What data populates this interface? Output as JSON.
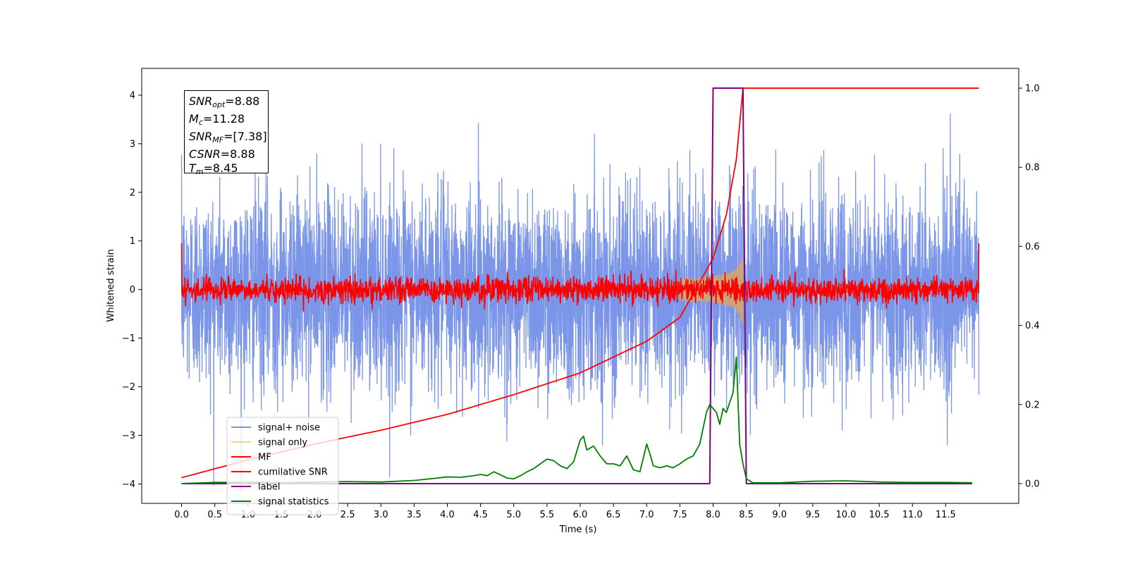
{
  "chart_data": {
    "type": "line",
    "title": "",
    "xlabel": "Time (s)",
    "ylabel": "Whitened strain",
    "xlim": [
      -0.6,
      12.6
    ],
    "ylim": [
      -4.4,
      4.55
    ],
    "y2lim": [
      -0.05,
      1.05
    ],
    "xticks": [
      "0.0",
      "0.5",
      "1.0",
      "1.5",
      "2.0",
      "2.5",
      "3.0",
      "3.5",
      "4.0",
      "4.5",
      "5.0",
      "5.5",
      "6.0",
      "6.5",
      "7.0",
      "7.5",
      "8.0",
      "8.5",
      "9.0",
      "9.5",
      "10.0",
      "10.5",
      "11.0",
      "11.5"
    ],
    "yticks": [
      "−4",
      "−3",
      "−2",
      "−1",
      "0",
      "1",
      "2",
      "3",
      "4"
    ],
    "y2ticks": [
      "0.0",
      "0.2",
      "0.4",
      "0.6",
      "0.8",
      "1.0"
    ],
    "legend_position": "lower left",
    "legend": [
      {
        "label": "signal+ noise",
        "color": "#7b96e8"
      },
      {
        "label": "signal only",
        "color": "#f5cf84"
      },
      {
        "label": "MF",
        "color": "#ff0000"
      },
      {
        "label": "cumilative SNR",
        "color": "#ff0000"
      },
      {
        "label": "label",
        "color": "#800080"
      },
      {
        "label": "signal statistics",
        "color": "#008000"
      }
    ],
    "annotation": {
      "snr_opt": {
        "name": "SNR",
        "sub": "opt",
        "value": "=8.88"
      },
      "mc": {
        "name": "M",
        "sub": "c",
        "value": "=11.28"
      },
      "snr_mf": {
        "name": "SNR",
        "sub": "MF",
        "value": "=[7.38]"
      },
      "csnr": {
        "name": "CSNR",
        "sub": "",
        "value": "=8.88"
      },
      "tm": {
        "name": "T",
        "sub": "m",
        "value": "=8.45"
      }
    },
    "series": [
      {
        "name": "signal+ noise",
        "axis": "left",
        "description_stats": {
          "x_start": 0.0,
          "x_end": 12.0,
          "mean": 0.0,
          "std": 1.0
        }
      },
      {
        "name": "signal only",
        "axis": "left",
        "chirp_start": 7.5,
        "chirp_end": 8.45,
        "peak_amplitude": 0.75
      },
      {
        "name": "MF",
        "axis": "left",
        "x_start": 0.0,
        "x_end": 12.0,
        "mean": 0.0,
        "std": 0.13,
        "edge_value": 0.95
      },
      {
        "name": "cumilative SNR",
        "axis": "right",
        "x": [
          0.0,
          1.0,
          2.0,
          3.0,
          4.0,
          5.0,
          6.0,
          7.0,
          7.5,
          8.0,
          8.2,
          8.35,
          8.45,
          12.0
        ],
        "values": [
          0.015,
          0.06,
          0.1,
          0.135,
          0.175,
          0.225,
          0.28,
          0.36,
          0.42,
          0.57,
          0.68,
          0.82,
          1.0,
          1.0
        ]
      },
      {
        "name": "label",
        "axis": "right",
        "x": [
          0.0,
          7.95,
          8.0,
          8.45,
          8.5,
          11.9
        ],
        "values": [
          0.0,
          0.0,
          1.0,
          1.0,
          0.0,
          0.0
        ]
      },
      {
        "name": "signal statistics",
        "axis": "right",
        "x": [
          0.0,
          0.5,
          1.0,
          1.5,
          2.0,
          2.5,
          3.0,
          3.5,
          3.8,
          4.0,
          4.2,
          4.4,
          4.5,
          4.6,
          4.7,
          4.8,
          4.9,
          5.0,
          5.1,
          5.2,
          5.3,
          5.4,
          5.5,
          5.6,
          5.7,
          5.8,
          5.9,
          6.0,
          6.05,
          6.1,
          6.2,
          6.3,
          6.4,
          6.5,
          6.6,
          6.7,
          6.8,
          6.9,
          7.0,
          7.05,
          7.1,
          7.2,
          7.3,
          7.4,
          7.5,
          7.6,
          7.7,
          7.8,
          7.9,
          7.95,
          8.0,
          8.05,
          8.1,
          8.15,
          8.2,
          8.3,
          8.35,
          8.4,
          8.45,
          8.5,
          8.6,
          9.0,
          9.5,
          10.0,
          10.5,
          11.0,
          11.5,
          11.9
        ],
        "values": [
          0.0,
          0.003,
          0.004,
          0.002,
          0.004,
          0.005,
          0.004,
          0.008,
          0.013,
          0.017,
          0.016,
          0.02,
          0.023,
          0.02,
          0.03,
          0.022,
          0.014,
          0.012,
          0.02,
          0.03,
          0.038,
          0.05,
          0.062,
          0.058,
          0.045,
          0.038,
          0.055,
          0.11,
          0.12,
          0.085,
          0.095,
          0.07,
          0.05,
          0.05,
          0.045,
          0.07,
          0.035,
          0.03,
          0.1,
          0.075,
          0.045,
          0.04,
          0.045,
          0.04,
          0.05,
          0.062,
          0.07,
          0.1,
          0.18,
          0.2,
          0.19,
          0.18,
          0.15,
          0.19,
          0.18,
          0.23,
          0.32,
          0.1,
          0.05,
          0.012,
          0.002,
          0.002,
          0.006,
          0.007,
          0.004,
          0.003,
          0.003,
          0.002
        ]
      }
    ]
  }
}
